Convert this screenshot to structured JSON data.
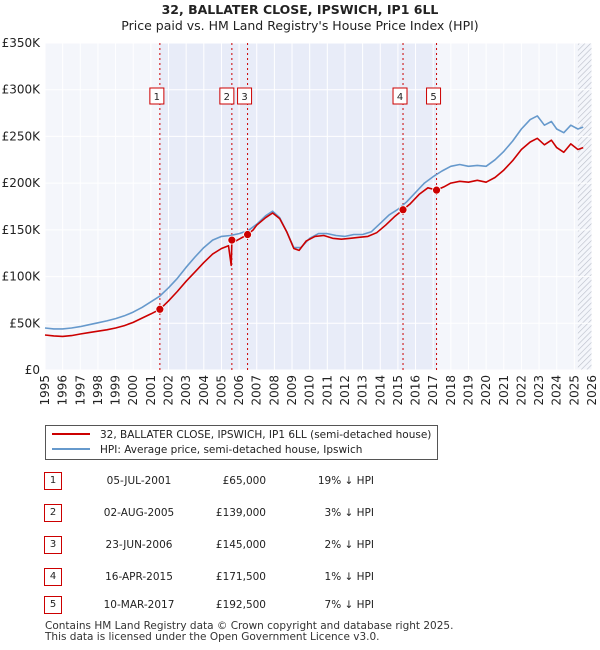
{
  "chart_data": {
    "type": "line",
    "title": "32, BALLATER CLOSE, IPSWICH, IP1 6LL",
    "subtitle": "Price paid vs. HM Land Registry's House Price Index (HPI)",
    "xlim": [
      1995,
      2026
    ],
    "ylim": [
      0,
      350000
    ],
    "y_ticks": [
      0,
      50000,
      100000,
      150000,
      200000,
      250000,
      300000,
      350000
    ],
    "y_tick_labels": [
      "£0",
      "£50K",
      "£100K",
      "£150K",
      "£200K",
      "£250K",
      "£300K",
      "£350K"
    ],
    "x_ticks": [
      1995,
      1996,
      1997,
      1998,
      1999,
      2000,
      2001,
      2002,
      2003,
      2004,
      2005,
      2006,
      2007,
      2008,
      2009,
      2010,
      2011,
      2012,
      2013,
      2014,
      2015,
      2016,
      2017,
      2018,
      2019,
      2020,
      2021,
      2022,
      2023,
      2024,
      2025,
      2026
    ],
    "x_tick_labels": [
      "1995",
      "1996",
      "1997",
      "1998",
      "1999",
      "2000",
      "2001",
      "2002",
      "2003",
      "2004",
      "2005",
      "2006",
      "2007",
      "2008",
      "2009",
      "2010",
      "2011",
      "2012",
      "2013",
      "2014",
      "2015",
      "2016",
      "2017",
      "2018",
      "2019",
      "2020",
      "2021",
      "2022",
      "2023",
      "2024",
      "2025",
      "2026"
    ],
    "shaded_range": [
      2001.51,
      2017.19
    ],
    "hatched_from": 2025.2,
    "colors": {
      "property": "#cc0000",
      "hpi": "#6699cc",
      "shade": "#e8ecf8",
      "grid": "#ffffff",
      "plot_bg": "#f4f6fb",
      "vline": "#cc0000"
    },
    "series": [
      {
        "name": "32, BALLATER CLOSE, IPSWICH, IP1 6LL (semi-detached house)",
        "color": "#cc0000",
        "points": [
          [
            1995.0,
            37500
          ],
          [
            1995.5,
            36500
          ],
          [
            1996.0,
            36000
          ],
          [
            1996.5,
            36800
          ],
          [
            1997.0,
            38500
          ],
          [
            1997.5,
            40000
          ],
          [
            1998.0,
            41500
          ],
          [
            1998.5,
            43000
          ],
          [
            1999.0,
            45000
          ],
          [
            1999.5,
            47500
          ],
          [
            2000.0,
            51000
          ],
          [
            2000.5,
            55500
          ],
          [
            2001.0,
            60000
          ],
          [
            2001.51,
            65000
          ],
          [
            2002.0,
            74000
          ],
          [
            2002.5,
            84000
          ],
          [
            2003.0,
            95000
          ],
          [
            2003.5,
            105000
          ],
          [
            2004.0,
            115000
          ],
          [
            2004.5,
            124000
          ],
          [
            2005.0,
            130000
          ],
          [
            2005.4,
            133000
          ],
          [
            2005.55,
            112000
          ],
          [
            2005.59,
            139000
          ],
          [
            2005.8,
            138000
          ],
          [
            2006.0,
            140000
          ],
          [
            2006.48,
            145000
          ],
          [
            2006.8,
            150000
          ],
          [
            2007.0,
            155000
          ],
          [
            2007.5,
            163000
          ],
          [
            2007.9,
            168000
          ],
          [
            2008.3,
            162000
          ],
          [
            2008.7,
            148000
          ],
          [
            2009.1,
            130000
          ],
          [
            2009.4,
            128000
          ],
          [
            2009.8,
            138000
          ],
          [
            2010.3,
            143000
          ],
          [
            2010.8,
            144000
          ],
          [
            2011.3,
            141000
          ],
          [
            2011.8,
            140000
          ],
          [
            2012.3,
            141000
          ],
          [
            2012.8,
            142000
          ],
          [
            2013.3,
            143000
          ],
          [
            2013.8,
            147000
          ],
          [
            2014.3,
            155000
          ],
          [
            2014.8,
            164000
          ],
          [
            2015.29,
            171500
          ],
          [
            2015.7,
            178000
          ],
          [
            2016.2,
            188000
          ],
          [
            2016.7,
            195000
          ],
          [
            2017.19,
            192500
          ],
          [
            2017.6,
            196000
          ],
          [
            2018.0,
            200000
          ],
          [
            2018.5,
            202000
          ],
          [
            2019.0,
            201000
          ],
          [
            2019.5,
            203000
          ],
          [
            2020.0,
            201000
          ],
          [
            2020.5,
            206000
          ],
          [
            2021.0,
            214000
          ],
          [
            2021.5,
            224000
          ],
          [
            2022.0,
            236000
          ],
          [
            2022.5,
            244000
          ],
          [
            2022.9,
            248000
          ],
          [
            2023.3,
            241000
          ],
          [
            2023.7,
            246000
          ],
          [
            2024.0,
            238000
          ],
          [
            2024.4,
            233000
          ],
          [
            2024.8,
            242000
          ],
          [
            2025.2,
            236000
          ],
          [
            2025.5,
            238000
          ]
        ]
      },
      {
        "name": "HPI: Average price, semi-detached house, Ipswich",
        "color": "#6699cc",
        "points": [
          [
            1995.0,
            45000
          ],
          [
            1995.5,
            44000
          ],
          [
            1996.0,
            44000
          ],
          [
            1996.5,
            45000
          ],
          [
            1997.0,
            46500
          ],
          [
            1997.5,
            48500
          ],
          [
            1998.0,
            50500
          ],
          [
            1998.5,
            52500
          ],
          [
            1999.0,
            55000
          ],
          [
            1999.5,
            58000
          ],
          [
            2000.0,
            62000
          ],
          [
            2000.5,
            67000
          ],
          [
            2001.0,
            73000
          ],
          [
            2001.5,
            79000
          ],
          [
            2002.0,
            88000
          ],
          [
            2002.5,
            98000
          ],
          [
            2003.0,
            110000
          ],
          [
            2003.5,
            121000
          ],
          [
            2004.0,
            131000
          ],
          [
            2004.5,
            139000
          ],
          [
            2005.0,
            143000
          ],
          [
            2005.5,
            144000
          ],
          [
            2006.0,
            146000
          ],
          [
            2006.5,
            149000
          ],
          [
            2007.0,
            156000
          ],
          [
            2007.5,
            165000
          ],
          [
            2007.9,
            170000
          ],
          [
            2008.3,
            163000
          ],
          [
            2008.7,
            148000
          ],
          [
            2009.1,
            131000
          ],
          [
            2009.5,
            131000
          ],
          [
            2010.0,
            141000
          ],
          [
            2010.5,
            146000
          ],
          [
            2011.0,
            146000
          ],
          [
            2011.5,
            144000
          ],
          [
            2012.0,
            143000
          ],
          [
            2012.5,
            145000
          ],
          [
            2013.0,
            145000
          ],
          [
            2013.5,
            148000
          ],
          [
            2014.0,
            157000
          ],
          [
            2014.5,
            166000
          ],
          [
            2015.0,
            172000
          ],
          [
            2015.5,
            180000
          ],
          [
            2016.0,
            190000
          ],
          [
            2016.5,
            200000
          ],
          [
            2017.0,
            207000
          ],
          [
            2017.5,
            213000
          ],
          [
            2018.0,
            218000
          ],
          [
            2018.5,
            220000
          ],
          [
            2019.0,
            218000
          ],
          [
            2019.5,
            219000
          ],
          [
            2020.0,
            218000
          ],
          [
            2020.5,
            225000
          ],
          [
            2021.0,
            234000
          ],
          [
            2021.5,
            245000
          ],
          [
            2022.0,
            258000
          ],
          [
            2022.5,
            268000
          ],
          [
            2022.9,
            272000
          ],
          [
            2023.3,
            262000
          ],
          [
            2023.7,
            266000
          ],
          [
            2024.0,
            258000
          ],
          [
            2024.4,
            254000
          ],
          [
            2024.8,
            262000
          ],
          [
            2025.2,
            258000
          ],
          [
            2025.5,
            260000
          ]
        ]
      }
    ],
    "sales": [
      {
        "num": "1",
        "x": 2001.51,
        "y": 65000
      },
      {
        "num": "2",
        "x": 2005.59,
        "y": 139000
      },
      {
        "num": "3",
        "x": 2006.48,
        "y": 145000
      },
      {
        "num": "4",
        "x": 2015.29,
        "y": 171500
      },
      {
        "num": "5",
        "x": 2017.19,
        "y": 192500
      }
    ],
    "legend": [
      {
        "label": "32, BALLATER CLOSE, IPSWICH, IP1 6LL (semi-detached house)",
        "color": "#cc0000"
      },
      {
        "label": "HPI: Average price, semi-detached house, Ipswich",
        "color": "#6699cc"
      }
    ]
  },
  "sales_table": [
    {
      "num": "1",
      "date": "05-JUL-2001",
      "price": "£65,000",
      "hpi": "19% ↓ HPI"
    },
    {
      "num": "2",
      "date": "02-AUG-2005",
      "price": "£139,000",
      "hpi": "3% ↓ HPI"
    },
    {
      "num": "3",
      "date": "23-JUN-2006",
      "price": "£145,000",
      "hpi": "2% ↓ HPI"
    },
    {
      "num": "4",
      "date": "16-APR-2015",
      "price": "£171,500",
      "hpi": "1% ↓ HPI"
    },
    {
      "num": "5",
      "date": "10-MAR-2017",
      "price": "£192,500",
      "hpi": "7% ↓ HPI"
    }
  ],
  "footer": {
    "line1": "Contains HM Land Registry data © Crown copyright and database right 2025.",
    "line2": "This data is licensed under the Open Government Licence v3.0."
  }
}
